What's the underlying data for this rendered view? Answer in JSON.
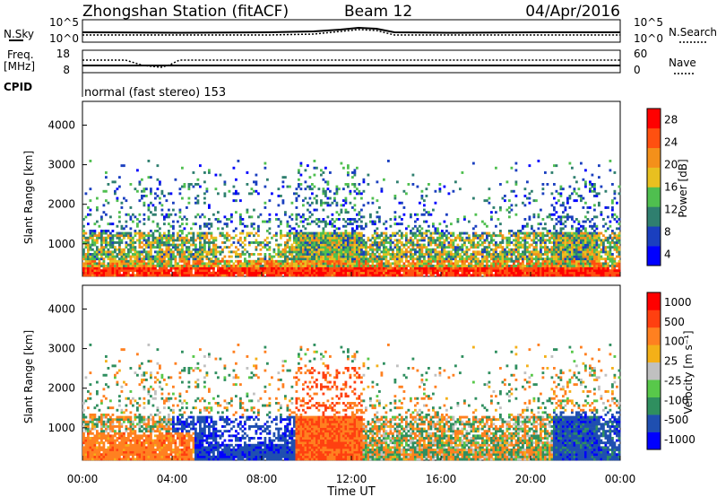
{
  "header": {
    "title": "Zhongshan Station (fitACF)",
    "beam": "Beam 12",
    "date": "04/Apr/2016"
  },
  "noise_panel": {
    "left_label": "N.Sky",
    "right_label": "N.Search",
    "left_ticks": [
      "10^5",
      "10^0"
    ],
    "right_ticks": [
      "10^5",
      "10^0"
    ]
  },
  "freq_panel": {
    "left_label_line1": "Freq.",
    "left_label_line2": "[MHz]",
    "right_label": "Nave",
    "left_ticks": [
      "18",
      "8"
    ],
    "right_ticks": [
      "60",
      "0"
    ]
  },
  "cpid": {
    "label": "CPID",
    "text": "normal (fast stereo) 153"
  },
  "colors": {
    "power_scale": [
      "#0000ff",
      "#1a3fbf",
      "#2f7f6f",
      "#4fbf4f",
      "#e8c020",
      "#f4901a",
      "#ff5010",
      "#ff0000"
    ],
    "velocity_scale": [
      "#0000ff",
      "#1f4fb0",
      "#2f8f5f",
      "#58c84a",
      "#c0c0c0",
      "#f4b018",
      "#ff8020",
      "#ff4010",
      "#ff0000"
    ]
  },
  "chart_data": [
    {
      "type": "heatmap",
      "panel": "power",
      "ylabel": "Slant Range [km]",
      "ylim": [
        180,
        4600
      ],
      "yticks": [
        "4000",
        "3000",
        "2000",
        "1000"
      ],
      "xlim_hours": [
        0,
        24
      ],
      "xticks": [
        "00:00",
        "04:00",
        "08:00",
        "12:00",
        "16:00",
        "20:00",
        "00:00"
      ],
      "colorbar_label": "Power [dB]",
      "colorbar_ticks": [
        "28",
        "24",
        "20",
        "16",
        "12",
        "8",
        "4"
      ],
      "color_range": [
        0,
        30
      ]
    },
    {
      "type": "heatmap",
      "panel": "velocity",
      "ylabel": "Slant Range [km]",
      "ylim": [
        180,
        4600
      ],
      "yticks": [
        "4000",
        "3000",
        "2000",
        "1000"
      ],
      "xlim_hours": [
        0,
        24
      ],
      "xticks": [
        "00:00",
        "04:00",
        "08:00",
        "12:00",
        "16:00",
        "20:00",
        "00:00"
      ],
      "xlabel": "Time UT",
      "colorbar_label": "Velocity [m s⁻¹]",
      "colorbar_ticks": [
        "1000",
        "500",
        "100",
        "25",
        "-25",
        "-100",
        "-500",
        "-1000"
      ]
    }
  ]
}
